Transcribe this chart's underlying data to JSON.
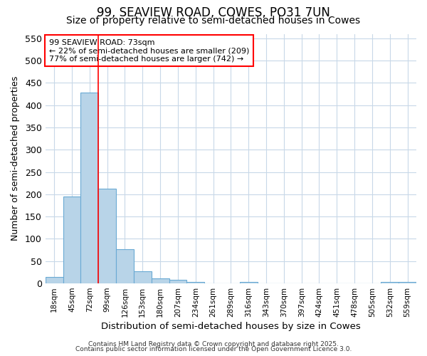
{
  "title": "99, SEAVIEW ROAD, COWES, PO31 7UN",
  "subtitle": "Size of property relative to semi-detached houses in Cowes",
  "xlabel": "Distribution of semi-detached houses by size in Cowes",
  "ylabel": "Number of semi-detached properties",
  "categories": [
    "18sqm",
    "45sqm",
    "72sqm",
    "99sqm",
    "126sqm",
    "153sqm",
    "180sqm",
    "207sqm",
    "234sqm",
    "261sqm",
    "289sqm",
    "316sqm",
    "343sqm",
    "370sqm",
    "397sqm",
    "424sqm",
    "451sqm",
    "478sqm",
    "505sqm",
    "532sqm",
    "559sqm"
  ],
  "values": [
    14,
    195,
    428,
    212,
    77,
    27,
    12,
    8,
    4,
    0,
    0,
    4,
    0,
    0,
    0,
    0,
    0,
    0,
    0,
    3,
    3
  ],
  "bar_color": "#b8d4e8",
  "bar_edge_color": "#6aaad4",
  "red_line_index": 2,
  "annotation_line1": "99 SEAVIEW ROAD: 73sqm",
  "annotation_line2": "← 22% of semi-detached houses are smaller (209)",
  "annotation_line3": "77% of semi-detached houses are larger (742) →",
  "ylim": [
    0,
    560
  ],
  "yticks": [
    0,
    50,
    100,
    150,
    200,
    250,
    300,
    350,
    400,
    450,
    500,
    550
  ],
  "background_color": "#ffffff",
  "plot_background_color": "#ffffff",
  "grid_color": "#c8d8e8",
  "title_fontsize": 12,
  "subtitle_fontsize": 10,
  "footer_line1": "Contains HM Land Registry data © Crown copyright and database right 2025.",
  "footer_line2": "Contains public sector information licensed under the Open Government Licence 3.0."
}
